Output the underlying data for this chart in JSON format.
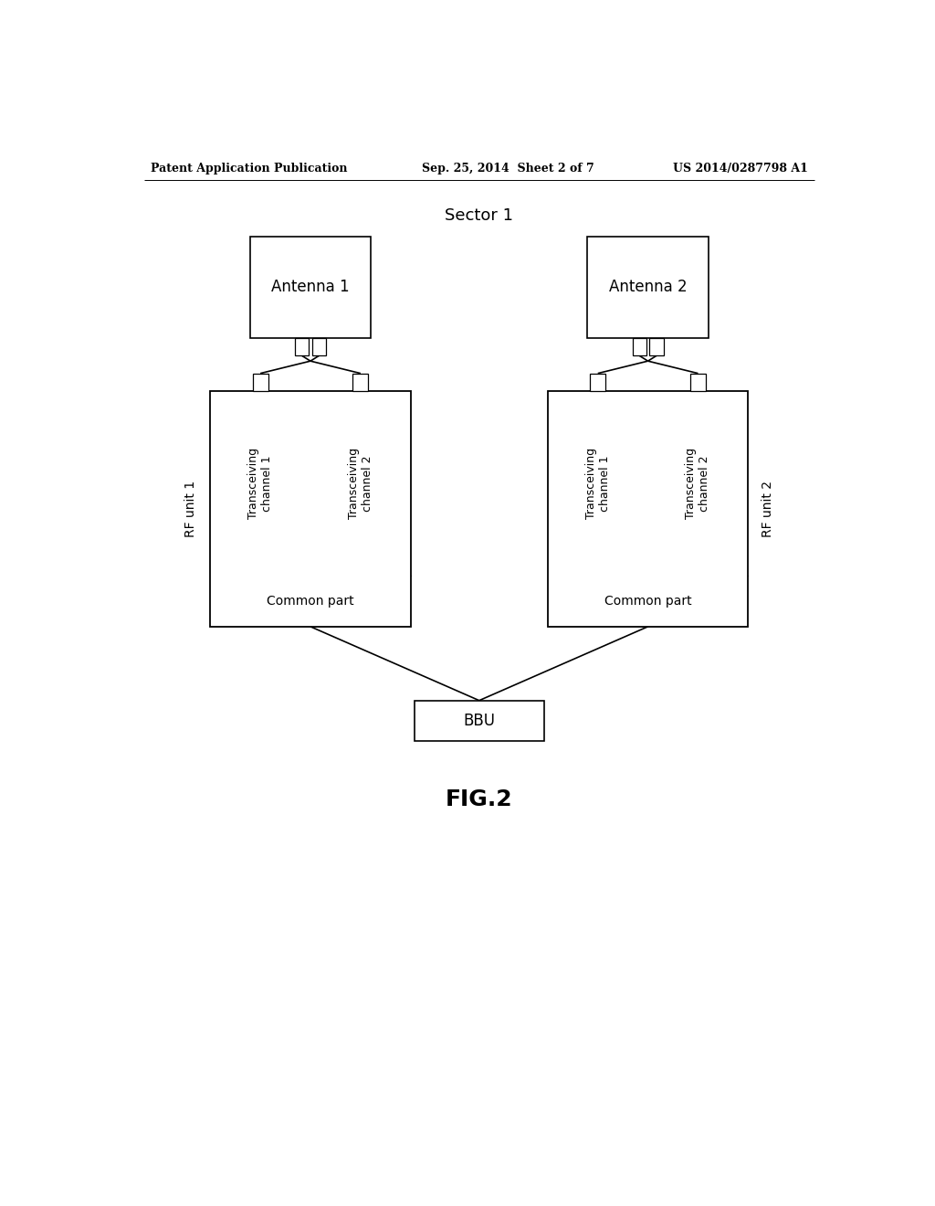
{
  "bg_color": "#ffffff",
  "header_left": "Patent Application Publication",
  "header_mid": "Sep. 25, 2014  Sheet 2 of 7",
  "header_right": "US 2014/0287798 A1",
  "sector_label": "Sector 1",
  "antenna1_label": "Antenna 1",
  "antenna2_label": "Antenna 2",
  "rf_unit1_label": "RF unit 1",
  "rf_unit2_label": "RF unit 2",
  "trans_ch1_label": "Transceiving\nchannel 1",
  "trans_ch2_label": "Transceiving\nchannel 2",
  "common_part_label": "Common part",
  "bbu_label": "BBU",
  "fig_label": "FIG.2",
  "line_color": "#000000",
  "box_edge_color": "#000000",
  "box_face_color": "#ffffff",
  "text_color": "#000000",
  "header_fontsize": 9,
  "sector_fontsize": 13,
  "antenna_fontsize": 12,
  "channel_fontsize": 9,
  "common_fontsize": 10,
  "rfunit_fontsize": 10,
  "bbu_fontsize": 12,
  "fig_fontsize": 18
}
